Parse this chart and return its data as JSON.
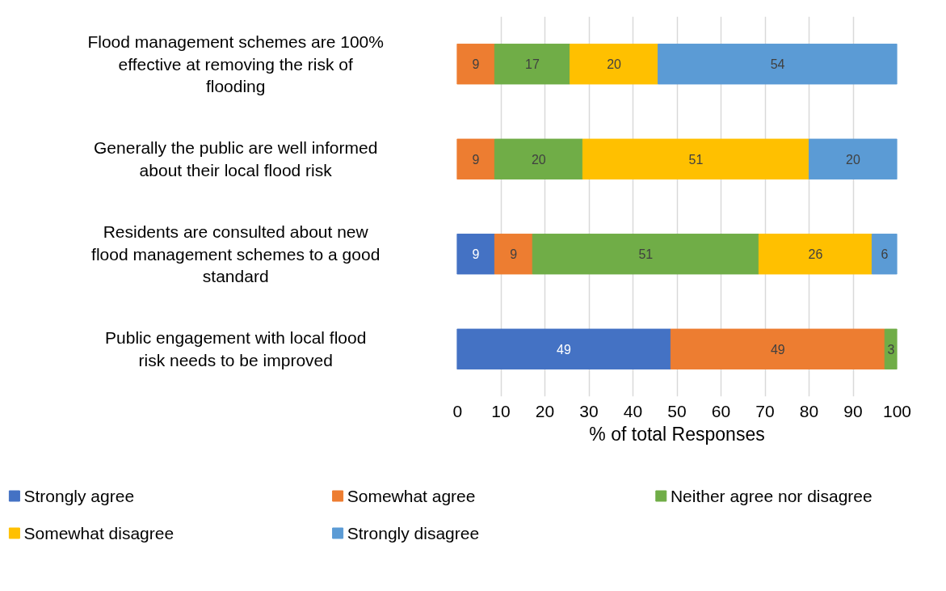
{
  "chart_data": {
    "type": "bar",
    "orientation": "horizontal",
    "stacked": true,
    "categories": [
      "Flood management schemes are 100% effective at removing the risk of flooding",
      "Generally the public are well informed about their local flood risk",
      "Residents are consulted about new flood management schemes to a good standard",
      "Public engagement with local flood risk needs to be improved"
    ],
    "series": [
      {
        "name": "Strongly agree",
        "color": "#4472c4",
        "values": [
          null,
          null,
          8.6,
          48.6
        ],
        "value_labels": [
          null,
          null,
          "9",
          "49"
        ]
      },
      {
        "name": "Somewhat agree",
        "color": "#ed7d31",
        "values": [
          8.6,
          8.6,
          8.6,
          48.6
        ],
        "value_labels": [
          "9",
          "9",
          "9",
          "49"
        ]
      },
      {
        "name": "Neither agree nor disagree",
        "color": "#70ad47",
        "values": [
          17.1,
          20,
          51.4,
          2.8
        ],
        "value_labels": [
          "17",
          "20",
          "51",
          "3"
        ]
      },
      {
        "name": "Somewhat disagree",
        "color": "#ffc000",
        "values": [
          20,
          51.4,
          25.7,
          null
        ],
        "value_labels": [
          "20",
          "51",
          "26",
          null
        ]
      },
      {
        "name": "Strongly disagree",
        "color": "#5b9bd5",
        "values": [
          54.3,
          20,
          5.7,
          null
        ],
        "value_labels": [
          "54",
          "20",
          "6",
          null
        ]
      }
    ],
    "xlim": [
      0,
      100
    ],
    "xticks": [
      0,
      10,
      20,
      30,
      40,
      50,
      60,
      70,
      80,
      90,
      100
    ],
    "xlabel": "% of total Responses",
    "grid": "x",
    "legend": "bottom"
  }
}
